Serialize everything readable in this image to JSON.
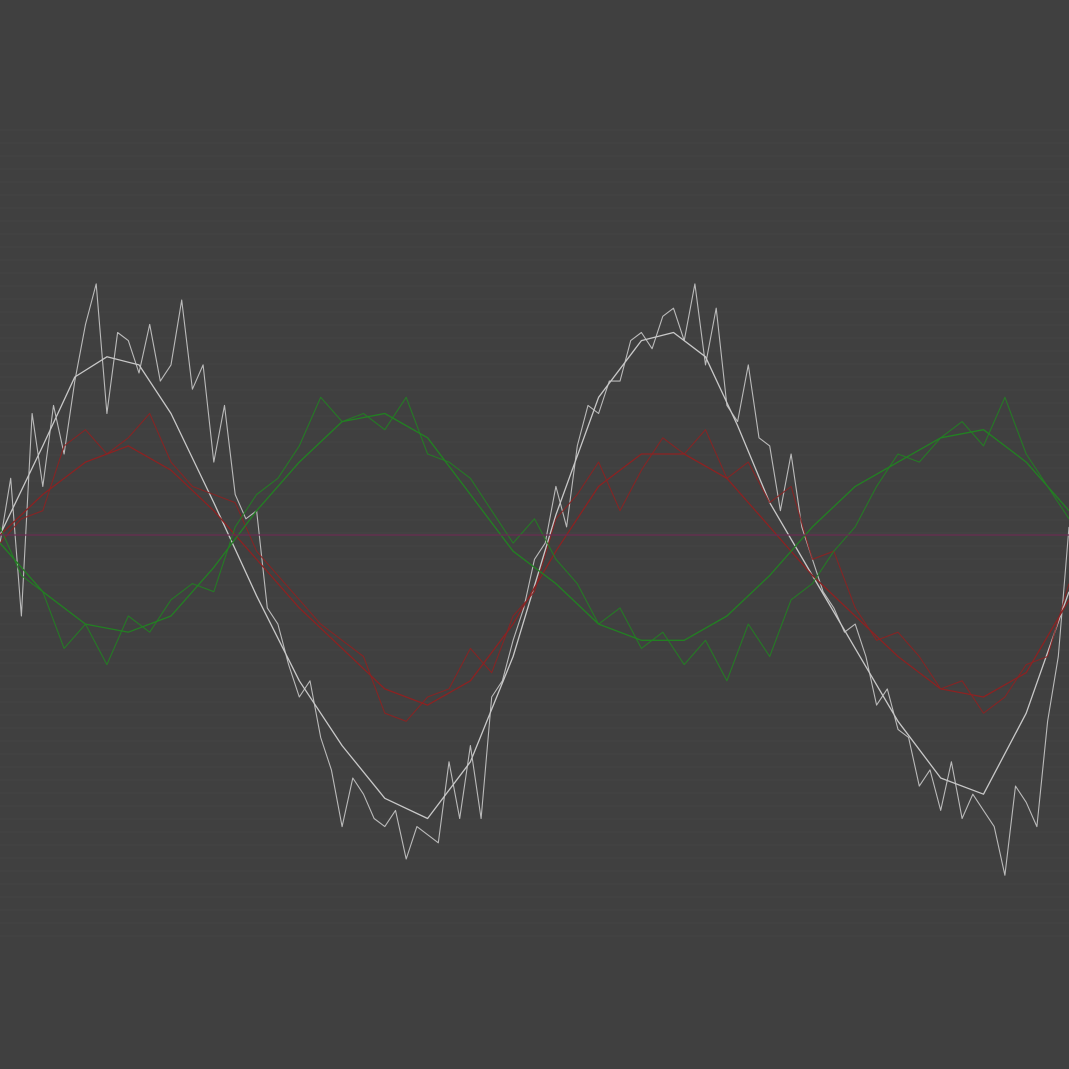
{
  "chart_data": {
    "type": "line",
    "title": "",
    "xlabel": "",
    "ylabel": "",
    "grid": true,
    "legend": "none",
    "xlim": [
      0,
      1
    ],
    "ylim": [
      -1,
      1
    ],
    "colors": {
      "background": "#404040",
      "grid": "#444444",
      "white": "#c8c8c8",
      "red": "#8c2222",
      "green": "#228022",
      "baseline": "#6a2c52"
    },
    "series": [
      {
        "color": "white",
        "style": "smooth",
        "x": [
          0,
          0.04,
          0.07,
          0.1,
          0.13,
          0.16,
          0.2,
          0.24,
          0.28,
          0.32,
          0.36,
          0.4,
          0.44,
          0.48,
          0.52,
          0.56,
          0.6,
          0.63,
          0.66,
          0.69,
          0.72,
          0.76,
          0.8,
          0.84,
          0.88,
          0.92,
          0.96,
          1.0
        ],
        "y": [
          0.0,
          0.22,
          0.39,
          0.44,
          0.42,
          0.3,
          0.08,
          -0.15,
          -0.36,
          -0.52,
          -0.65,
          -0.7,
          -0.56,
          -0.3,
          0.05,
          0.34,
          0.48,
          0.5,
          0.44,
          0.27,
          0.08,
          -0.1,
          -0.28,
          -0.46,
          -0.6,
          -0.64,
          -0.44,
          -0.14
        ]
      },
      {
        "color": "white",
        "style": "noisy",
        "x": [
          0,
          0.01,
          0.02,
          0.03,
          0.04,
          0.05,
          0.06,
          0.07,
          0.08,
          0.09,
          0.1,
          0.11,
          0.12,
          0.13,
          0.14,
          0.15,
          0.16,
          0.17,
          0.18,
          0.19,
          0.2,
          0.21,
          0.22,
          0.23,
          0.24,
          0.25,
          0.26,
          0.27,
          0.28,
          0.29,
          0.3,
          0.31,
          0.32,
          0.33,
          0.34,
          0.35,
          0.36,
          0.37,
          0.38,
          0.39,
          0.4,
          0.41,
          0.42,
          0.43,
          0.44,
          0.45,
          0.46,
          0.47,
          0.48,
          0.49,
          0.5,
          0.51,
          0.52,
          0.53,
          0.54,
          0.55,
          0.56,
          0.57,
          0.58,
          0.59,
          0.6,
          0.61,
          0.62,
          0.63,
          0.64,
          0.65,
          0.66,
          0.67,
          0.68,
          0.69,
          0.7,
          0.71,
          0.72,
          0.73,
          0.74,
          0.75,
          0.76,
          0.77,
          0.78,
          0.79,
          0.8,
          0.81,
          0.82,
          0.83,
          0.84,
          0.85,
          0.86,
          0.87,
          0.88,
          0.89,
          0.9,
          0.91,
          0.92,
          0.93,
          0.94,
          0.95,
          0.96,
          0.97,
          0.98,
          0.99,
          1.0
        ],
        "y": [
          -0.02,
          0.14,
          -0.2,
          0.3,
          0.12,
          0.32,
          0.2,
          0.38,
          0.52,
          0.62,
          0.3,
          0.5,
          0.48,
          0.4,
          0.52,
          0.38,
          0.42,
          0.58,
          0.36,
          0.42,
          0.18,
          0.32,
          0.1,
          0.04,
          0.06,
          -0.18,
          -0.22,
          -0.32,
          -0.4,
          -0.36,
          -0.5,
          -0.58,
          -0.72,
          -0.6,
          -0.64,
          -0.7,
          -0.72,
          -0.68,
          -0.8,
          -0.72,
          -0.74,
          -0.76,
          -0.56,
          -0.7,
          -0.52,
          -0.7,
          -0.4,
          -0.36,
          -0.26,
          -0.18,
          -0.06,
          -0.02,
          0.12,
          0.02,
          0.22,
          0.32,
          0.3,
          0.38,
          0.38,
          0.48,
          0.5,
          0.46,
          0.54,
          0.56,
          0.48,
          0.62,
          0.42,
          0.56,
          0.32,
          0.28,
          0.42,
          0.24,
          0.22,
          0.06,
          0.2,
          0.02,
          -0.06,
          -0.14,
          -0.18,
          -0.24,
          -0.22,
          -0.3,
          -0.42,
          -0.38,
          -0.48,
          -0.5,
          -0.62,
          -0.58,
          -0.68,
          -0.56,
          -0.7,
          -0.64,
          -0.68,
          -0.72,
          -0.84,
          -0.62,
          -0.66,
          -0.72,
          -0.46,
          -0.3,
          0.02
        ]
      },
      {
        "color": "red",
        "style": "smooth",
        "x": [
          0,
          0.04,
          0.08,
          0.12,
          0.16,
          0.2,
          0.24,
          0.28,
          0.32,
          0.36,
          0.4,
          0.44,
          0.48,
          0.52,
          0.56,
          0.6,
          0.64,
          0.68,
          0.72,
          0.76,
          0.8,
          0.84,
          0.88,
          0.92,
          0.96,
          1.0
        ],
        "y": [
          0.0,
          0.1,
          0.18,
          0.22,
          0.16,
          0.06,
          -0.06,
          -0.18,
          -0.28,
          -0.38,
          -0.42,
          -0.36,
          -0.22,
          -0.04,
          0.12,
          0.2,
          0.2,
          0.14,
          0.02,
          -0.1,
          -0.2,
          -0.3,
          -0.38,
          -0.4,
          -0.34,
          -0.16
        ]
      },
      {
        "color": "red",
        "style": "noisy",
        "x": [
          0,
          0.02,
          0.04,
          0.06,
          0.08,
          0.1,
          0.12,
          0.14,
          0.16,
          0.18,
          0.2,
          0.22,
          0.24,
          0.26,
          0.28,
          0.3,
          0.32,
          0.34,
          0.36,
          0.38,
          0.4,
          0.42,
          0.44,
          0.46,
          0.48,
          0.5,
          0.52,
          0.54,
          0.56,
          0.58,
          0.6,
          0.62,
          0.64,
          0.66,
          0.68,
          0.7,
          0.72,
          0.74,
          0.76,
          0.78,
          0.8,
          0.82,
          0.84,
          0.86,
          0.88,
          0.9,
          0.92,
          0.94,
          0.96,
          0.98,
          1.0
        ],
        "y": [
          -0.02,
          0.04,
          0.06,
          0.22,
          0.26,
          0.2,
          0.24,
          0.3,
          0.18,
          0.12,
          0.1,
          0.08,
          -0.04,
          -0.1,
          -0.16,
          -0.22,
          -0.26,
          -0.3,
          -0.44,
          -0.46,
          -0.4,
          -0.38,
          -0.28,
          -0.34,
          -0.2,
          -0.14,
          0.04,
          0.1,
          0.18,
          0.06,
          0.16,
          0.24,
          0.2,
          0.26,
          0.14,
          0.18,
          0.08,
          0.12,
          -0.06,
          -0.04,
          -0.18,
          -0.26,
          -0.24,
          -0.3,
          -0.38,
          -0.36,
          -0.44,
          -0.4,
          -0.32,
          -0.3,
          -0.12
        ]
      },
      {
        "color": "green",
        "style": "smooth",
        "x": [
          0,
          0.04,
          0.08,
          0.12,
          0.16,
          0.2,
          0.24,
          0.28,
          0.32,
          0.36,
          0.4,
          0.44,
          0.48,
          0.52,
          0.56,
          0.6,
          0.64,
          0.68,
          0.72,
          0.76,
          0.8,
          0.84,
          0.88,
          0.92,
          0.96,
          1.0
        ],
        "y": [
          -0.02,
          -0.14,
          -0.22,
          -0.24,
          -0.2,
          -0.08,
          0.06,
          0.18,
          0.28,
          0.3,
          0.24,
          0.1,
          -0.04,
          -0.12,
          -0.22,
          -0.26,
          -0.26,
          -0.2,
          -0.1,
          0.02,
          0.12,
          0.18,
          0.24,
          0.26,
          0.18,
          0.06
        ]
      },
      {
        "color": "green",
        "style": "noisy",
        "x": [
          0,
          0.02,
          0.04,
          0.06,
          0.08,
          0.1,
          0.12,
          0.14,
          0.16,
          0.18,
          0.2,
          0.22,
          0.24,
          0.26,
          0.28,
          0.3,
          0.32,
          0.34,
          0.36,
          0.38,
          0.4,
          0.42,
          0.44,
          0.46,
          0.48,
          0.5,
          0.52,
          0.54,
          0.56,
          0.58,
          0.6,
          0.62,
          0.64,
          0.66,
          0.68,
          0.7,
          0.72,
          0.74,
          0.76,
          0.78,
          0.8,
          0.82,
          0.84,
          0.86,
          0.88,
          0.9,
          0.92,
          0.94,
          0.96,
          0.98,
          1.0
        ],
        "y": [
          0.02,
          -0.1,
          -0.14,
          -0.28,
          -0.22,
          -0.32,
          -0.2,
          -0.24,
          -0.16,
          -0.12,
          -0.14,
          0.02,
          0.1,
          0.14,
          0.22,
          0.34,
          0.28,
          0.3,
          0.26,
          0.34,
          0.2,
          0.18,
          0.14,
          0.06,
          -0.02,
          0.04,
          -0.06,
          -0.12,
          -0.22,
          -0.18,
          -0.28,
          -0.24,
          -0.32,
          -0.26,
          -0.36,
          -0.22,
          -0.3,
          -0.16,
          -0.12,
          -0.04,
          0.02,
          0.12,
          0.2,
          0.18,
          0.24,
          0.28,
          0.22,
          0.34,
          0.2,
          0.12,
          0.04
        ]
      },
      {
        "color": "baseline",
        "style": "flat",
        "x": [
          0,
          1
        ],
        "y": [
          0,
          0
        ]
      }
    ]
  }
}
